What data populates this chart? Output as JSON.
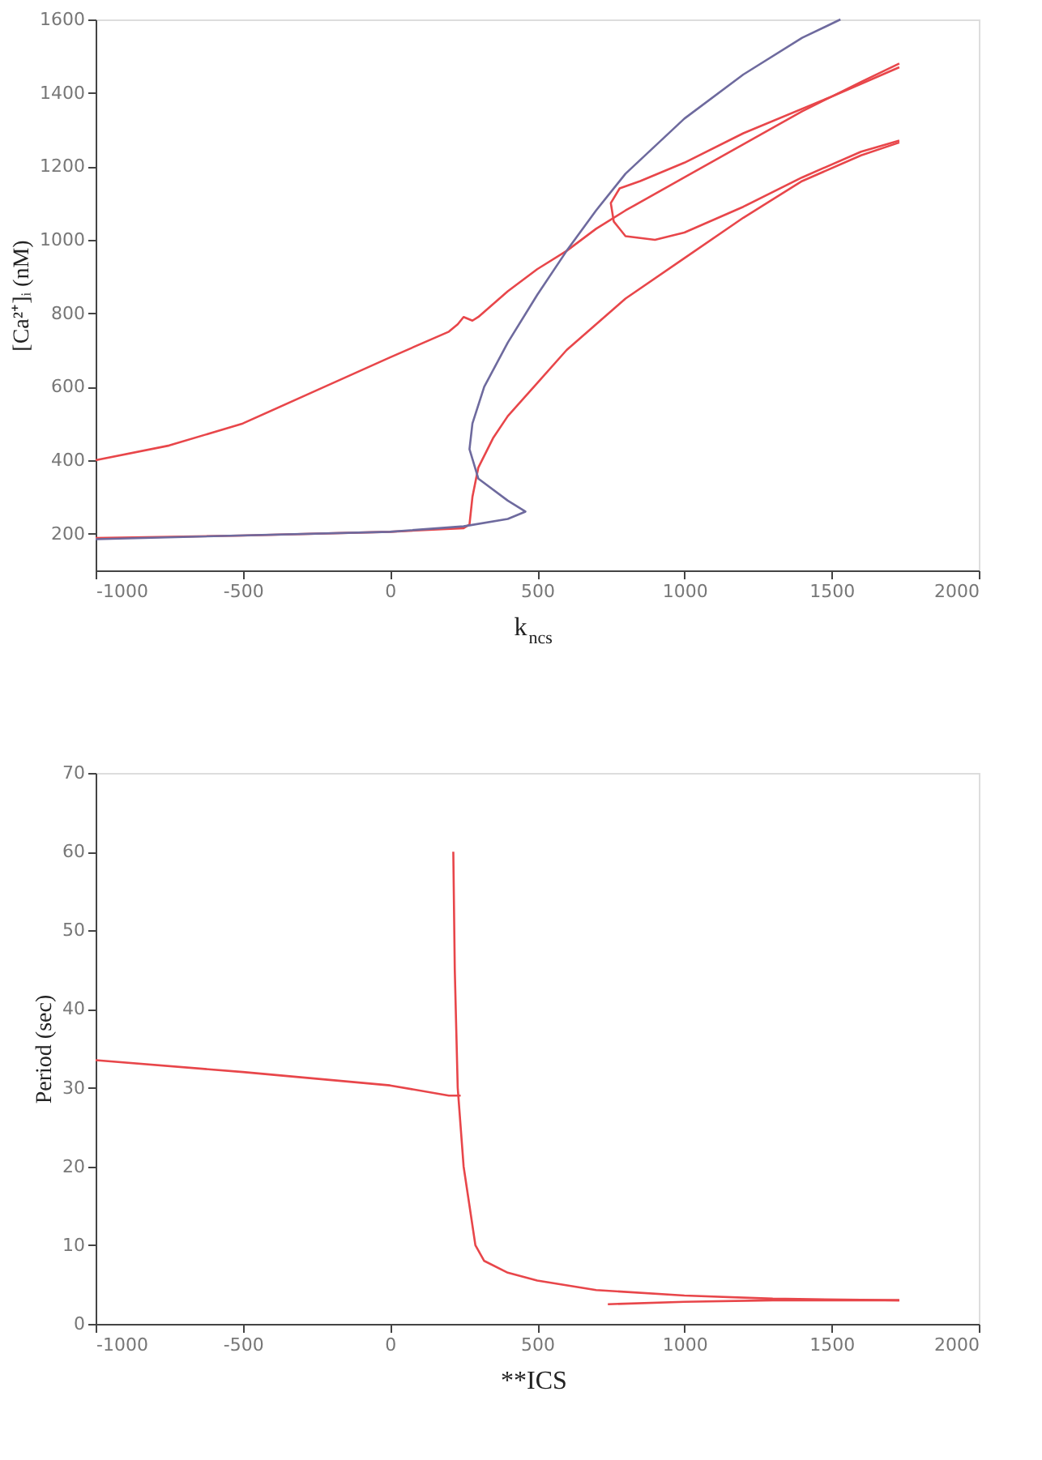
{
  "chart_data": [
    {
      "type": "line",
      "xlabel": "k$_{ncs}$",
      "ylabel": "[Ca²⁺]ᵢ (nM)",
      "xlim": [
        -1000,
        2000
      ],
      "xticks": [
        -1000,
        -500,
        0,
        500,
        1000,
        1500,
        2000
      ],
      "ylim": [
        100,
        1600
      ],
      "yticks": [
        200,
        400,
        600,
        800,
        1000,
        1200,
        1400,
        1600
      ],
      "grid": false,
      "line_style": "solid",
      "series": [
        {
          "color": "#e8464a",
          "x": [
            -1000,
            -750,
            -500,
            -250,
            0,
            200,
            230,
            250,
            280,
            300,
            400,
            500,
            600,
            700,
            800,
            1000,
            1200,
            1400,
            1600,
            1730
          ],
          "values": [
            400,
            440,
            500,
            590,
            680,
            750,
            770,
            790,
            780,
            790,
            860,
            920,
            970,
            1030,
            1080,
            1170,
            1260,
            1350,
            1430,
            1480
          ]
        },
        {
          "color": "#e8464a",
          "x": [
            1730,
            1500,
            1200,
            1000,
            850,
            780,
            750,
            760,
            800,
            900,
            1000,
            1200,
            1400,
            1600,
            1730
          ],
          "values": [
            1470,
            1390,
            1290,
            1210,
            1160,
            1140,
            1100,
            1050,
            1010,
            1000,
            1020,
            1090,
            1170,
            1240,
            1270
          ]
        },
        {
          "color": "#e8464a",
          "x": [
            -1000,
            -500,
            0,
            250,
            270,
            280,
            300,
            350,
            400,
            500,
            600,
            800,
            1000,
            1200,
            1400,
            1600,
            1730
          ],
          "values": [
            188,
            195,
            205,
            215,
            225,
            300,
            380,
            460,
            520,
            610,
            700,
            840,
            950,
            1060,
            1160,
            1230,
            1265
          ]
        },
        {
          "color": "#6e6a9e",
          "x": [
            -1000,
            0,
            250,
            400,
            460,
            400,
            300,
            270,
            280,
            320,
            400,
            500,
            600,
            700,
            800,
            1000,
            1200,
            1400,
            1530
          ],
          "values": [
            185,
            205,
            220,
            240,
            260,
            290,
            350,
            430,
            500,
            600,
            720,
            850,
            970,
            1080,
            1180,
            1330,
            1450,
            1550,
            1600
          ]
        }
      ]
    },
    {
      "type": "line",
      "xlabel": "**ICS",
      "ylabel": "Period (sec)",
      "xlim": [
        -1000,
        2000
      ],
      "xticks": [
        -1000,
        -500,
        0,
        500,
        1000,
        1500,
        2000
      ],
      "ylim": [
        0,
        70
      ],
      "yticks": [
        0,
        10,
        20,
        30,
        40,
        50,
        60,
        70
      ],
      "grid": false,
      "line_style": "solid",
      "series": [
        {
          "color": "#e8464a",
          "x": [
            -1000,
            -500,
            0,
            200,
            240
          ],
          "values": [
            33.5,
            32,
            30.3,
            29,
            29
          ]
        },
        {
          "color": "#e8464a",
          "x": [
            215,
            220,
            230,
            250,
            270,
            290,
            320,
            400,
            500,
            700,
            1000,
            1300,
            1730
          ],
          "values": [
            60,
            45,
            30,
            20,
            15,
            10,
            8,
            6.5,
            5.5,
            4.3,
            3.6,
            3.2,
            3
          ]
        },
        {
          "color": "#e8464a",
          "x": [
            740,
            1000,
            1300,
            1730
          ],
          "values": [
            2.5,
            2.8,
            3.0,
            3.0
          ]
        }
      ]
    }
  ]
}
